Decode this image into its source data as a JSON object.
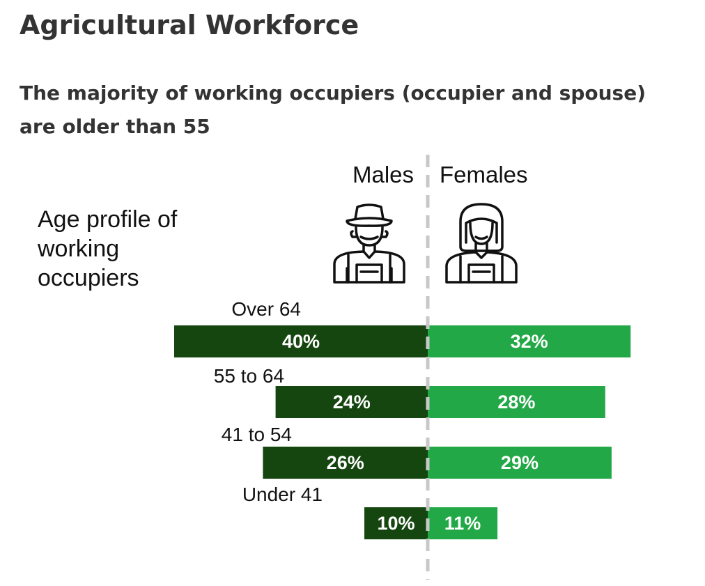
{
  "page": {
    "title": "Agricultural Workforce",
    "subtitle": "The majority of working occupiers (occupier and spouse) are older than 55"
  },
  "chart_data": {
    "type": "bar",
    "orientation": "horizontal-diverging",
    "heading": "Age profile of working occupiers",
    "categories": [
      "Over 64",
      "55 to 64",
      "41 to 54",
      "Under 41"
    ],
    "series": [
      {
        "name": "Males",
        "values": [
          40,
          24,
          26,
          10
        ],
        "labels": [
          "40%",
          "24%",
          "26%",
          "10%"
        ],
        "color": "#15460f"
      },
      {
        "name": "Females",
        "values": [
          32,
          28,
          29,
          11
        ],
        "labels": [
          "32%",
          "28%",
          "29%",
          "11%"
        ],
        "color": "#22a846"
      }
    ],
    "unit": "%",
    "divider_color": "#c8c8c8",
    "icons": {
      "males": "male-farmer-icon",
      "females": "female-farmer-icon"
    }
  }
}
